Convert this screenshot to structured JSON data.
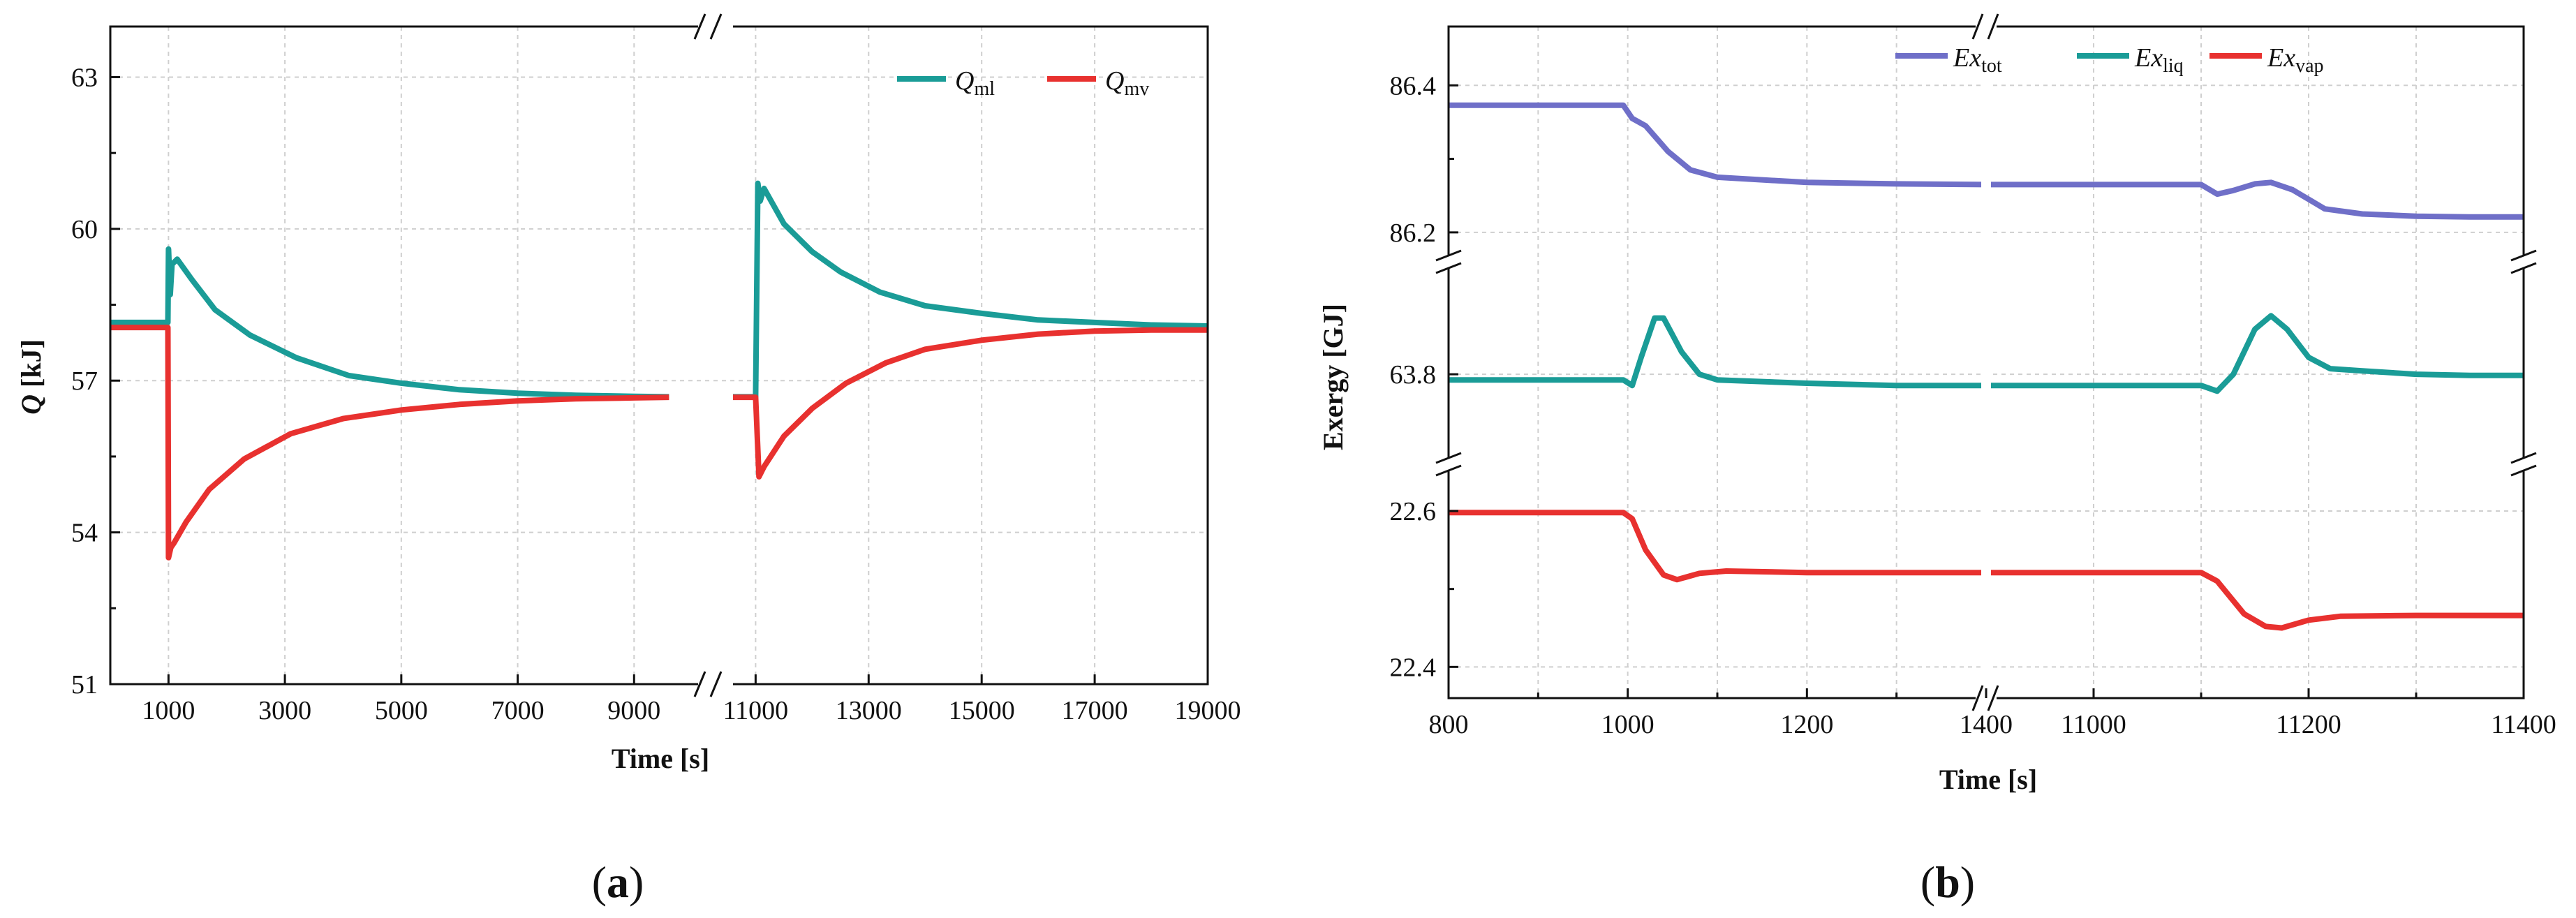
{
  "colors": {
    "teal": "#1a9c97",
    "red": "#e8312f",
    "purple": "#6f6fc8"
  },
  "chart_data": [
    {
      "panel": "a",
      "type": "line",
      "panel_label_open": "(",
      "panel_label_letter": "a",
      "panel_label_close": ")",
      "xlabel": "Time [s]",
      "ylabel_sym": "Q",
      "ylabel_unit": " [kJ]",
      "x_break": [
        9600,
        10600
      ],
      "x_segments": [
        [
          0,
          10100
        ],
        [
          10600,
          19000
        ]
      ],
      "ylim": [
        51,
        64
      ],
      "xticks": [
        {
          "value": 1000,
          "label": "1000"
        },
        {
          "value": 3000,
          "label": "3000"
        },
        {
          "value": 5000,
          "label": "5000"
        },
        {
          "value": 7000,
          "label": "7000"
        },
        {
          "value": 9000,
          "label": "9000"
        },
        {
          "value": 11000,
          "label": "11000"
        },
        {
          "value": 13000,
          "label": "13000"
        },
        {
          "value": 15000,
          "label": "15000"
        },
        {
          "value": 17000,
          "label": "17000"
        },
        {
          "value": 19000,
          "label": "19000"
        }
      ],
      "yticks": [
        {
          "value": 51,
          "label": "51"
        },
        {
          "value": 54,
          "label": "54"
        },
        {
          "value": 57,
          "label": "57"
        },
        {
          "value": 60,
          "label": "60"
        },
        {
          "value": 63,
          "label": "63"
        }
      ],
      "series": [
        {
          "name": "Q_ml",
          "name_main": "Q",
          "name_sub": "ml",
          "color": "#1a9c97",
          "points": [
            [
              0,
              58.15
            ],
            [
              990,
              58.15
            ],
            [
              1000,
              59.6
            ],
            [
              1030,
              58.7
            ],
            [
              1060,
              59.3
            ],
            [
              1150,
              59.4
            ],
            [
              1400,
              59.0
            ],
            [
              1800,
              58.4
            ],
            [
              2400,
              57.9
            ],
            [
              3200,
              57.45
            ],
            [
              4100,
              57.1
            ],
            [
              5000,
              56.95
            ],
            [
              6000,
              56.82
            ],
            [
              7000,
              56.75
            ],
            [
              8000,
              56.71
            ],
            [
              9000,
              56.69
            ],
            [
              9600,
              56.68
            ],
            [
              10600,
              56.68
            ],
            [
              11000,
              56.68
            ],
            [
              11040,
              60.9
            ],
            [
              11080,
              60.55
            ],
            [
              11150,
              60.8
            ],
            [
              11500,
              60.1
            ],
            [
              12000,
              59.55
            ],
            [
              12500,
              59.15
            ],
            [
              13200,
              58.75
            ],
            [
              14000,
              58.48
            ],
            [
              15000,
              58.33
            ],
            [
              16000,
              58.2
            ],
            [
              17000,
              58.15
            ],
            [
              18000,
              58.1
            ],
            [
              19000,
              58.08
            ]
          ]
        },
        {
          "name": "Q_mv",
          "name_main": "Q",
          "name_sub": "mv",
          "color": "#e8312f",
          "points": [
            [
              0,
              58.05
            ],
            [
              990,
              58.05
            ],
            [
              1000,
              53.5
            ],
            [
              1040,
              53.7
            ],
            [
              1100,
              53.8
            ],
            [
              1300,
              54.2
            ],
            [
              1700,
              54.85
            ],
            [
              2300,
              55.45
            ],
            [
              3100,
              55.95
            ],
            [
              4000,
              56.25
            ],
            [
              5000,
              56.42
            ],
            [
              6000,
              56.53
            ],
            [
              7000,
              56.6
            ],
            [
              8000,
              56.64
            ],
            [
              9000,
              56.66
            ],
            [
              9600,
              56.67
            ],
            [
              10600,
              56.67
            ],
            [
              11000,
              56.67
            ],
            [
              11060,
              55.1
            ],
            [
              11150,
              55.3
            ],
            [
              11500,
              55.9
            ],
            [
              12000,
              56.45
            ],
            [
              12600,
              56.95
            ],
            [
              13300,
              57.35
            ],
            [
              14000,
              57.62
            ],
            [
              15000,
              57.8
            ],
            [
              16000,
              57.92
            ],
            [
              17000,
              57.98
            ],
            [
              18000,
              58.0
            ],
            [
              19000,
              58.0
            ]
          ]
        }
      ]
    },
    {
      "panel": "b",
      "type": "line",
      "panel_label_open": "(",
      "panel_label_letter": "b",
      "panel_label_close": ")",
      "xlabel": "Time [s]",
      "ylabel": "Exergy [GJ]",
      "x_segments": [
        [
          800,
          1400
        ],
        [
          10900,
          11400
        ]
      ],
      "xticks": [
        {
          "value": 800,
          "label": "800"
        },
        {
          "value": 1000,
          "label": "1000"
        },
        {
          "value": 1200,
          "label": "1200"
        },
        {
          "value": 1400,
          "label": "1400"
        },
        {
          "value": 11000,
          "label": "11000"
        },
        {
          "value": 11200,
          "label": "11200"
        },
        {
          "value": 11400,
          "label": "11400"
        }
      ],
      "y_bands": [
        {
          "name": "top",
          "ylim": [
            86.16,
            86.48
          ],
          "yticks": [
            {
              "value": 86.2,
              "label": "86.2"
            },
            {
              "value": 86.4,
              "label": "86.4"
            }
          ],
          "series": [
            {
              "name": "Ex_tot",
              "color": "#6f6fc8",
              "points": [
                [
                  800,
                  86.373
                ],
                [
                  995,
                  86.373
                ],
                [
                  1005,
                  86.355
                ],
                [
                  1020,
                  86.345
                ],
                [
                  1045,
                  86.31
                ],
                [
                  1070,
                  86.285
                ],
                [
                  1100,
                  86.275
                ],
                [
                  1200,
                  86.268
                ],
                [
                  1300,
                  86.266
                ],
                [
                  1400,
                  86.265
                ],
                [
                  10900,
                  86.265
                ],
                [
                  11100,
                  86.265
                ],
                [
                  11115,
                  86.252
                ],
                [
                  11130,
                  86.257
                ],
                [
                  11150,
                  86.266
                ],
                [
                  11165,
                  86.268
                ],
                [
                  11185,
                  86.258
                ],
                [
                  11215,
                  86.232
                ],
                [
                  11250,
                  86.225
                ],
                [
                  11300,
                  86.222
                ],
                [
                  11350,
                  86.221
                ],
                [
                  11400,
                  86.221
                ]
              ]
            }
          ]
        },
        {
          "name": "middle",
          "ylim": [
            63.72,
            63.9
          ],
          "yticks": [
            {
              "value": 63.8,
              "label": "63.8"
            }
          ],
          "series": [
            {
              "name": "Ex_liq",
              "color": "#1a9c97",
              "points": [
                [
                  800,
                  63.795
                ],
                [
                  995,
                  63.795
                ],
                [
                  1005,
                  63.79
                ],
                [
                  1015,
                  63.815
                ],
                [
                  1030,
                  63.85
                ],
                [
                  1040,
                  63.85
                ],
                [
                  1060,
                  63.82
                ],
                [
                  1080,
                  63.8
                ],
                [
                  1100,
                  63.795
                ],
                [
                  1200,
                  63.792
                ],
                [
                  1300,
                  63.79
                ],
                [
                  1400,
                  63.79
                ],
                [
                  10900,
                  63.79
                ],
                [
                  11100,
                  63.79
                ],
                [
                  11115,
                  63.785
                ],
                [
                  11130,
                  63.8
                ],
                [
                  11150,
                  63.84
                ],
                [
                  11165,
                  63.852
                ],
                [
                  11180,
                  63.84
                ],
                [
                  11200,
                  63.815
                ],
                [
                  11220,
                  63.805
                ],
                [
                  11250,
                  63.803
                ],
                [
                  11300,
                  63.8
                ],
                [
                  11350,
                  63.799
                ],
                [
                  11400,
                  63.799
                ]
              ]
            }
          ]
        },
        {
          "name": "bottom",
          "ylim": [
            22.36,
            22.66
          ],
          "yticks": [
            {
              "value": 22.4,
              "label": "22.4"
            },
            {
              "value": 22.6,
              "label": "22.6"
            }
          ],
          "series": [
            {
              "name": "Ex_vap",
              "color": "#e8312f",
              "points": [
                [
                  800,
                  22.598
                ],
                [
                  995,
                  22.598
                ],
                [
                  1005,
                  22.59
                ],
                [
                  1020,
                  22.55
                ],
                [
                  1040,
                  22.518
                ],
                [
                  1055,
                  22.512
                ],
                [
                  1080,
                  22.52
                ],
                [
                  1110,
                  22.523
                ],
                [
                  1200,
                  22.521
                ],
                [
                  1300,
                  22.521
                ],
                [
                  1400,
                  22.521
                ],
                [
                  10900,
                  22.521
                ],
                [
                  11100,
                  22.521
                ],
                [
                  11115,
                  22.51
                ],
                [
                  11140,
                  22.468
                ],
                [
                  11160,
                  22.452
                ],
                [
                  11175,
                  22.45
                ],
                [
                  11200,
                  22.46
                ],
                [
                  11230,
                  22.465
                ],
                [
                  11300,
                  22.466
                ],
                [
                  11400,
                  22.466
                ]
              ]
            }
          ]
        }
      ],
      "legend": [
        {
          "main": "Ex",
          "sub": "tot",
          "color": "#6f6fc8"
        },
        {
          "main": "Ex",
          "sub": "liq",
          "color": "#1a9c97"
        },
        {
          "main": "Ex",
          "sub": "vap",
          "color": "#e8312f"
        }
      ]
    }
  ]
}
